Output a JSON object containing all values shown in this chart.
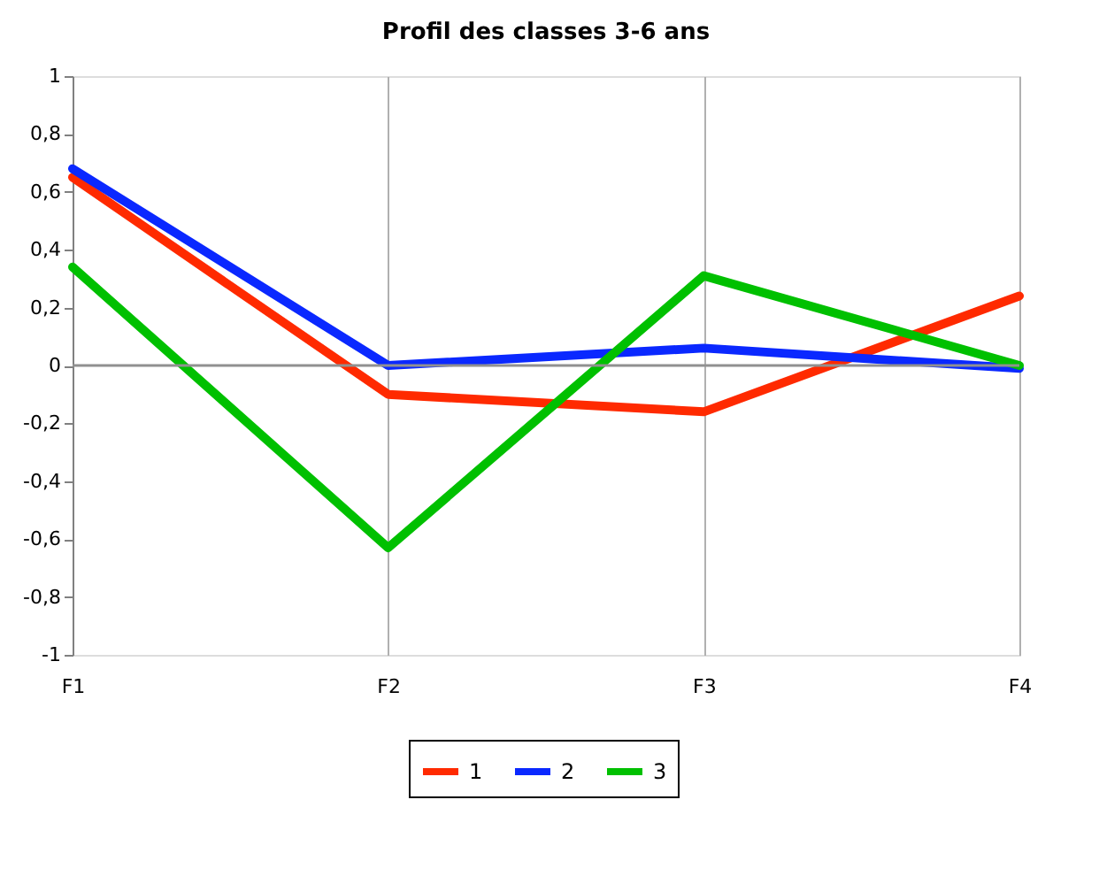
{
  "chart_data": {
    "type": "line",
    "title": "Profil des classes 3-6 ans",
    "categories": [
      "F1",
      "F2",
      "F3",
      "F4"
    ],
    "series": [
      {
        "name": "1",
        "color": "#ff2a00",
        "values": [
          0.65,
          -0.1,
          -0.16,
          0.24
        ]
      },
      {
        "name": "2",
        "color": "#0a28ff",
        "values": [
          0.68,
          0.0,
          0.06,
          -0.01
        ]
      },
      {
        "name": "3",
        "color": "#00c000",
        "values": [
          0.34,
          -0.63,
          0.31,
          0.0
        ]
      }
    ],
    "ylim": [
      -1,
      1
    ],
    "yticks": [
      -1,
      {
        "value": -0.8,
        "label": "-0,8"
      },
      {
        "value": -0.6,
        "label": "-0,6"
      },
      {
        "value": -0.4,
        "label": "-0,4"
      },
      {
        "value": -0.2,
        "label": "-0,2"
      },
      0,
      {
        "value": 0.2,
        "label": "0,2"
      },
      {
        "value": 0.4,
        "label": "0,4"
      },
      {
        "value": 0.6,
        "label": "0,6"
      },
      {
        "value": 0.8,
        "label": "0,8"
      },
      1
    ],
    "grid": "x",
    "legend": "bottom",
    "marker": "none",
    "line_style": "solid"
  }
}
